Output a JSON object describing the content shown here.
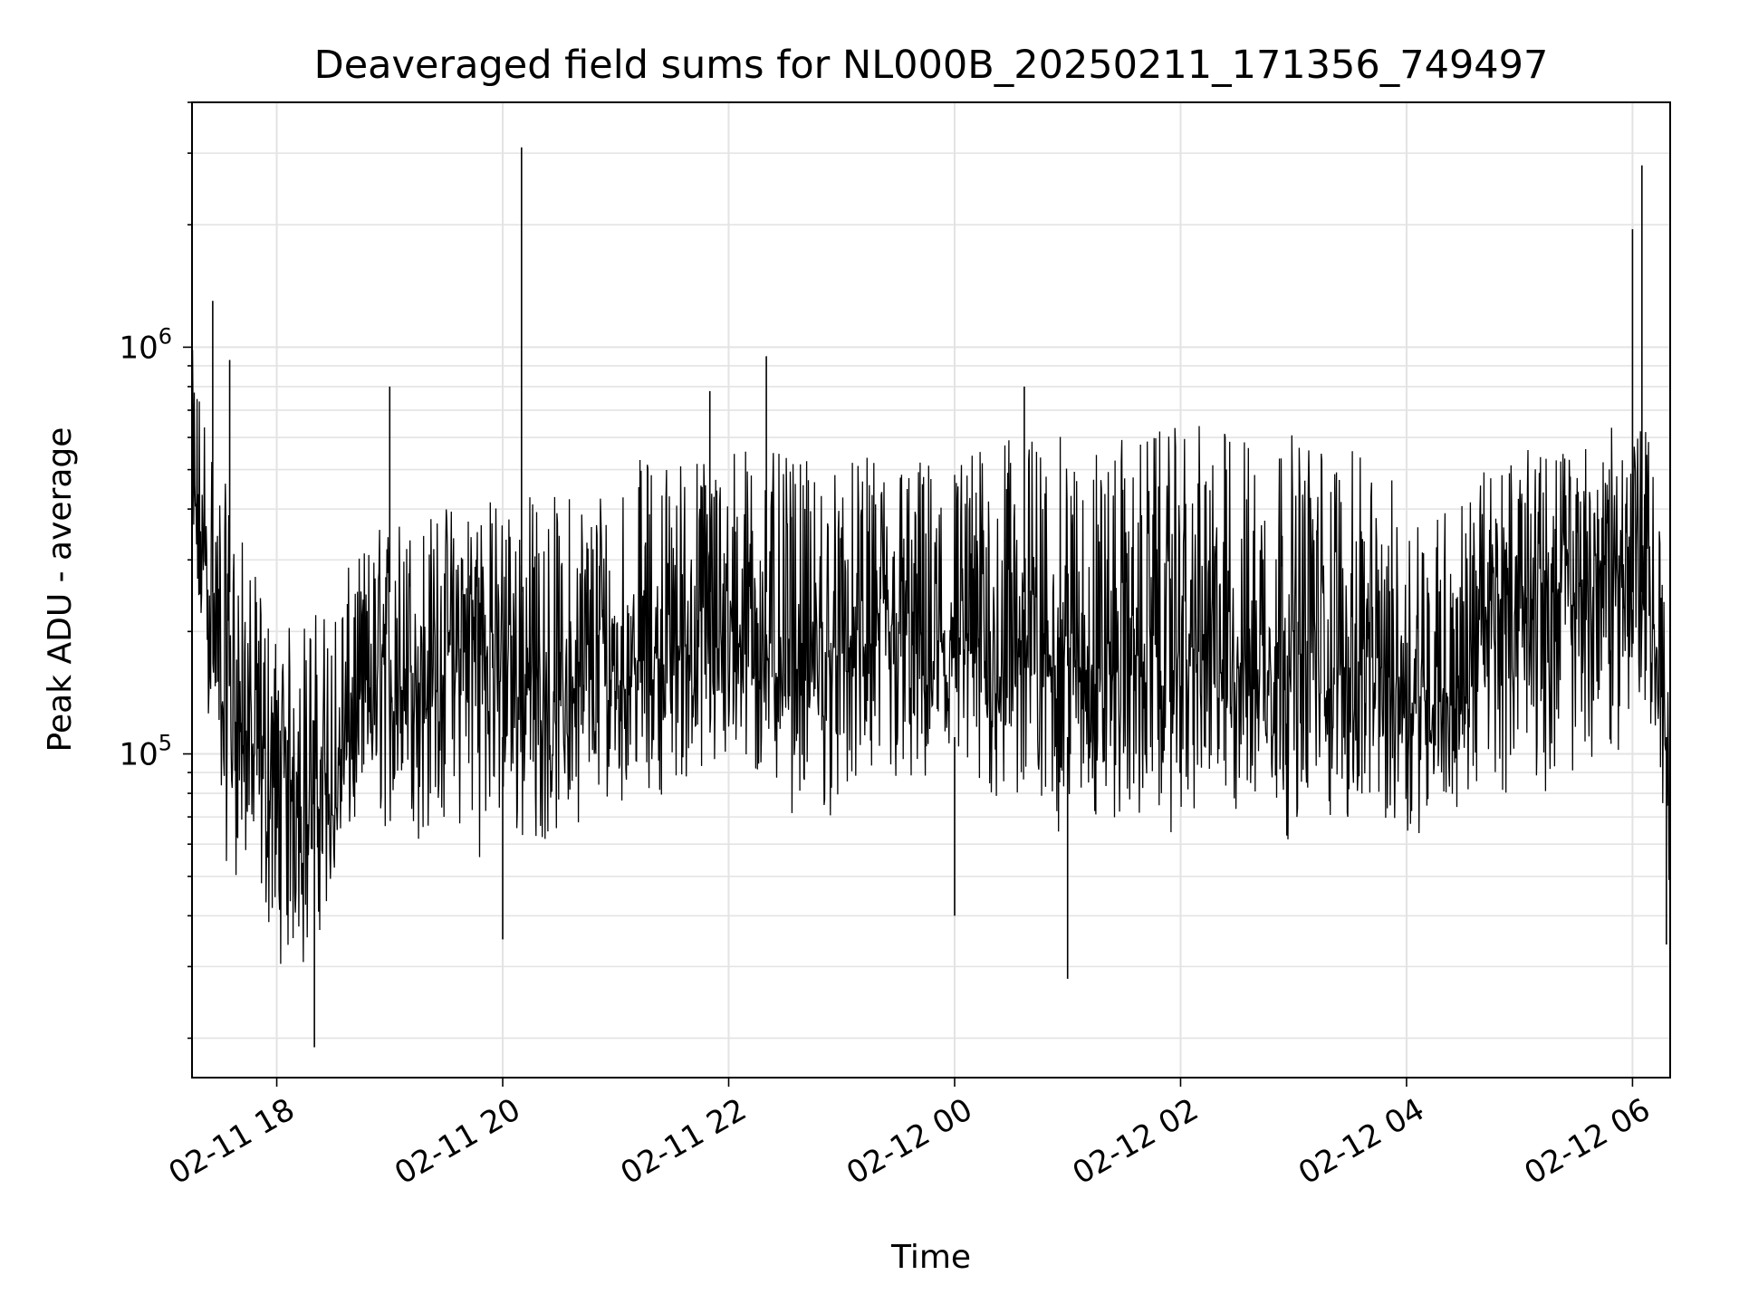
{
  "chart_data": {
    "type": "line",
    "title": "Deaveraged field sums for NL000B_20250211_171356_749497",
    "xlabel": "Time",
    "ylabel": "Peak ADU - average",
    "yscale": "log",
    "ylim": [
      16000,
      4000000
    ],
    "grid": true,
    "x_ticks": [
      "02-11 18",
      "02-11 20",
      "02-11 22",
      "02-12 00",
      "02-12 02",
      "02-12 04",
      "02-12 06"
    ],
    "y_ticks": [
      {
        "base": "10",
        "exp": "5",
        "value": 100000
      },
      {
        "base": "10",
        "exp": "6",
        "value": 1000000
      }
    ],
    "xlim": [
      "2025-02-11 17:15",
      "2025-02-12 06:20"
    ],
    "series": [
      {
        "color": "#000000",
        "x": [
          "2025-02-11 17:15",
          "2025-02-11 17:30",
          "2025-02-11 17:45",
          "2025-02-11 18:00",
          "2025-02-11 18:15",
          "2025-02-11 18:30",
          "2025-02-11 18:45",
          "2025-02-11 19:00",
          "2025-02-11 19:15",
          "2025-02-11 19:30",
          "2025-02-11 19:45",
          "2025-02-11 20:00",
          "2025-02-11 20:15",
          "2025-02-11 20:30",
          "2025-02-11 20:45",
          "2025-02-11 21:00",
          "2025-02-11 21:15",
          "2025-02-11 21:30",
          "2025-02-11 21:45",
          "2025-02-11 22:00",
          "2025-02-11 22:15",
          "2025-02-11 22:30",
          "2025-02-11 22:45",
          "2025-02-11 23:00",
          "2025-02-11 23:15",
          "2025-02-11 23:30",
          "2025-02-11 23:45",
          "2025-02-12 00:00",
          "2025-02-12 00:15",
          "2025-02-12 00:30",
          "2025-02-12 00:45",
          "2025-02-12 01:00",
          "2025-02-12 01:15",
          "2025-02-12 01:30",
          "2025-02-12 01:45",
          "2025-02-12 02:00",
          "2025-02-12 02:15",
          "2025-02-12 02:30",
          "2025-02-12 02:45",
          "2025-02-12 03:00",
          "2025-02-12 03:15",
          "2025-02-12 03:30",
          "2025-02-12 03:45",
          "2025-02-12 04:00",
          "2025-02-12 04:15",
          "2025-02-12 04:30",
          "2025-02-12 04:45",
          "2025-02-12 05:00",
          "2025-02-12 05:15",
          "2025-02-12 05:30",
          "2025-02-12 05:45",
          "2025-02-12 06:00",
          "2025-02-12 06:10",
          "2025-02-12 06:20"
        ],
        "y": [
          400000,
          150000,
          110000,
          80000,
          90000,
          70000,
          140000,
          150000,
          160000,
          170000,
          200000,
          190000,
          140000,
          130000,
          150000,
          160000,
          170000,
          180000,
          190000,
          200000,
          200000,
          170000,
          160000,
          180000,
          190000,
          190000,
          185000,
          180000,
          180000,
          185000,
          190000,
          170000,
          165000,
          170000,
          175000,
          180000,
          175000,
          170000,
          175000,
          175000,
          170000,
          160000,
          160000,
          150000,
          140000,
          140000,
          220000,
          260000,
          240000,
          250000,
          280000,
          320000,
          230000,
          55000
        ],
        "y_low": [
          200000,
          55000,
          42000,
          30000,
          25000,
          45000,
          60000,
          60000,
          55000,
          60000,
          55000,
          50000,
          55000,
          60000,
          70000,
          75000,
          75000,
          80000,
          75000,
          78000,
          72000,
          70000,
          68000,
          65000,
          70000,
          70000,
          65000,
          68000,
          66000,
          65000,
          60000,
          58000,
          62000,
          62000,
          60000,
          62000,
          62000,
          60000,
          58000,
          60000,
          62000,
          62000,
          60000,
          60000,
          65000,
          68000,
          75000,
          80000,
          78000,
          80000,
          85000,
          110000,
          90000,
          40000
        ],
        "y_high": [
          1000000,
          500000,
          300000,
          200000,
          220000,
          250000,
          320000,
          400000,
          380000,
          420000,
          450000,
          420000,
          450000,
          440000,
          470000,
          520000,
          540000,
          560000,
          560000,
          600000,
          580000,
          540000,
          520000,
          520000,
          540000,
          560000,
          540000,
          560000,
          580000,
          600000,
          620000,
          600000,
          580000,
          600000,
          620000,
          640000,
          650000,
          640000,
          630000,
          620000,
          600000,
          560000,
          500000,
          460000,
          420000,
          440000,
          520000,
          560000,
          560000,
          580000,
          620000,
          680000,
          600000,
          100000
        ],
        "spikes": [
          {
            "x": "2025-02-11 17:26",
            "y": 1300000
          },
          {
            "x": "2025-02-11 17:35",
            "y": 930000
          },
          {
            "x": "2025-02-11 18:20",
            "y": 19000
          },
          {
            "x": "2025-02-11 19:00",
            "y": 800000
          },
          {
            "x": "2025-02-11 20:10",
            "y": 3100000
          },
          {
            "x": "2025-02-11 20:00",
            "y": 35000
          },
          {
            "x": "2025-02-11 22:20",
            "y": 950000
          },
          {
            "x": "2025-02-11 21:50",
            "y": 780000
          },
          {
            "x": "2025-02-12 01:00",
            "y": 28000
          },
          {
            "x": "2025-02-12 00:00",
            "y": 40000
          },
          {
            "x": "2025-02-12 00:37",
            "y": 800000
          },
          {
            "x": "2025-02-12 06:00",
            "y": 1950000
          },
          {
            "x": "2025-02-12 06:05",
            "y": 2800000
          },
          {
            "x": "2025-02-12 06:18",
            "y": 34000
          }
        ]
      }
    ]
  }
}
